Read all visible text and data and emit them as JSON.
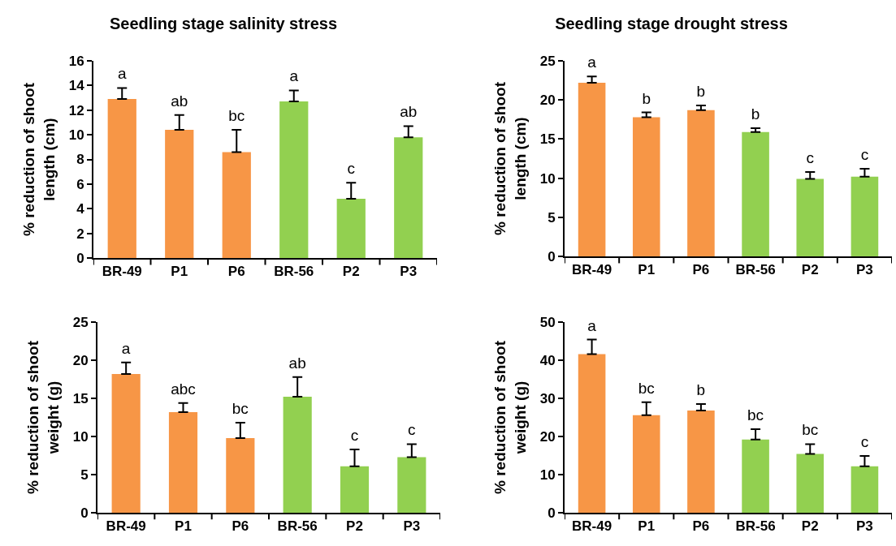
{
  "chart_data": [
    {
      "type": "bar",
      "title": "Seedling stage salinity stress",
      "ylabel": "% reduction of shoot length (cm)",
      "categories": [
        "BR-49",
        "P1",
        "P6",
        "BR-56",
        "P2",
        "P3"
      ],
      "values": [
        12.9,
        10.4,
        8.6,
        12.7,
        4.8,
        9.8
      ],
      "errors": [
        [
          12.9,
          13.8
        ],
        [
          10.4,
          11.6
        ],
        [
          8.6,
          10.4
        ],
        [
          12.7,
          13.6
        ],
        [
          4.8,
          6.1
        ],
        [
          9.8,
          10.7
        ]
      ],
      "colors": [
        "#f79646",
        "#f79646",
        "#f79646",
        "#92d050",
        "#92d050",
        "#92d050"
      ],
      "ylim": [
        0,
        16
      ],
      "yticks": [
        0,
        2,
        4,
        6,
        8,
        10,
        12,
        14,
        16
      ],
      "grid": false,
      "legend": false,
      "annotations": [
        {
          "text": "a",
          "x": "BR-49",
          "y": 12.9
        },
        {
          "text": "ab",
          "x": "P1",
          "y": 10.4
        },
        {
          "text": "bc",
          "x": "P6",
          "y": 8.6
        },
        {
          "text": "a",
          "x": "BR-56",
          "y": 12.7
        },
        {
          "text": "c",
          "x": "P2",
          "y": 4.8
        },
        {
          "text": "ab",
          "x": "P3",
          "y": 9.8
        }
      ]
    },
    {
      "type": "bar",
      "title": "Seedling stage drought stress",
      "ylabel": "% reduction of shoot length (cm)",
      "categories": [
        "BR-49",
        "P1",
        "P6",
        "BR-56",
        "P2",
        "P3"
      ],
      "values": [
        22.2,
        17.8,
        18.7,
        15.9,
        9.9,
        10.2
      ],
      "errors": [
        [
          22.2,
          23.0
        ],
        [
          17.8,
          18.4
        ],
        [
          18.7,
          19.3
        ],
        [
          15.9,
          16.4
        ],
        [
          9.9,
          10.8
        ],
        [
          10.2,
          11.2
        ]
      ],
      "colors": [
        "#f79646",
        "#f79646",
        "#f79646",
        "#92d050",
        "#92d050",
        "#92d050"
      ],
      "ylim": [
        0,
        25
      ],
      "yticks": [
        0,
        5,
        10,
        15,
        20,
        25
      ],
      "grid": false,
      "legend": false,
      "annotations": [
        {
          "text": "a",
          "x": "BR-49",
          "y": 22.2
        },
        {
          "text": "b",
          "x": "P1",
          "y": 17.8
        },
        {
          "text": "b",
          "x": "P6",
          "y": 18.7
        },
        {
          "text": "b",
          "x": "BR-56",
          "y": 15.9
        },
        {
          "text": "c",
          "x": "P2",
          "y": 9.9
        },
        {
          "text": "c",
          "x": "P3",
          "y": 10.2
        }
      ]
    },
    {
      "type": "bar",
      "ylabel": "% reduction of shoot weight (g)",
      "categories": [
        "BR-49",
        "P1",
        "P6",
        "BR-56",
        "P2",
        "P3"
      ],
      "values": [
        18.2,
        13.2,
        9.8,
        15.2,
        6.1,
        7.3
      ],
      "errors": [
        [
          18.2,
          19.7
        ],
        [
          13.2,
          14.4
        ],
        [
          9.8,
          11.8
        ],
        [
          15.2,
          17.8
        ],
        [
          6.1,
          8.3
        ],
        [
          7.3,
          9.0
        ]
      ],
      "colors": [
        "#f79646",
        "#f79646",
        "#f79646",
        "#92d050",
        "#92d050",
        "#92d050"
      ],
      "ylim": [
        0,
        25
      ],
      "yticks": [
        0,
        5,
        10,
        15,
        20,
        25
      ],
      "grid": false,
      "legend": false,
      "annotations": [
        {
          "text": "a",
          "x": "BR-49",
          "y": 18.2
        },
        {
          "text": "abc",
          "x": "P1",
          "y": 13.2
        },
        {
          "text": "bc",
          "x": "P6",
          "y": 9.8
        },
        {
          "text": "ab",
          "x": "BR-56",
          "y": 15.2
        },
        {
          "text": "c",
          "x": "P2",
          "y": 6.1
        },
        {
          "text": "c",
          "x": "P3",
          "y": 7.3
        }
      ]
    },
    {
      "type": "bar",
      "ylabel": "% reduction of shoot weight (g)",
      "categories": [
        "BR-49",
        "P1",
        "P6",
        "BR-56",
        "P2",
        "P3"
      ],
      "values": [
        41.6,
        25.6,
        26.8,
        19.2,
        15.4,
        12.2
      ],
      "errors": [
        [
          41.6,
          45.4
        ],
        [
          25.6,
          29.0
        ],
        [
          26.8,
          28.5
        ],
        [
          19.2,
          21.9
        ],
        [
          15.4,
          18.0
        ],
        [
          12.2,
          14.9
        ]
      ],
      "colors": [
        "#f79646",
        "#f79646",
        "#f79646",
        "#92d050",
        "#92d050",
        "#92d050"
      ],
      "ylim": [
        0,
        50
      ],
      "yticks": [
        0,
        10,
        20,
        30,
        40,
        50
      ],
      "grid": false,
      "legend": false,
      "annotations": [
        {
          "text": "a",
          "x": "BR-49",
          "y": 41.6
        },
        {
          "text": "bc",
          "x": "P1",
          "y": 25.6
        },
        {
          "text": "b",
          "x": "P6",
          "y": 26.8
        },
        {
          "text": "bc",
          "x": "BR-56",
          "y": 19.2
        },
        {
          "text": "bc",
          "x": "P2",
          "y": 15.4
        },
        {
          "text": "c",
          "x": "P3",
          "y": 12.2
        }
      ]
    }
  ]
}
